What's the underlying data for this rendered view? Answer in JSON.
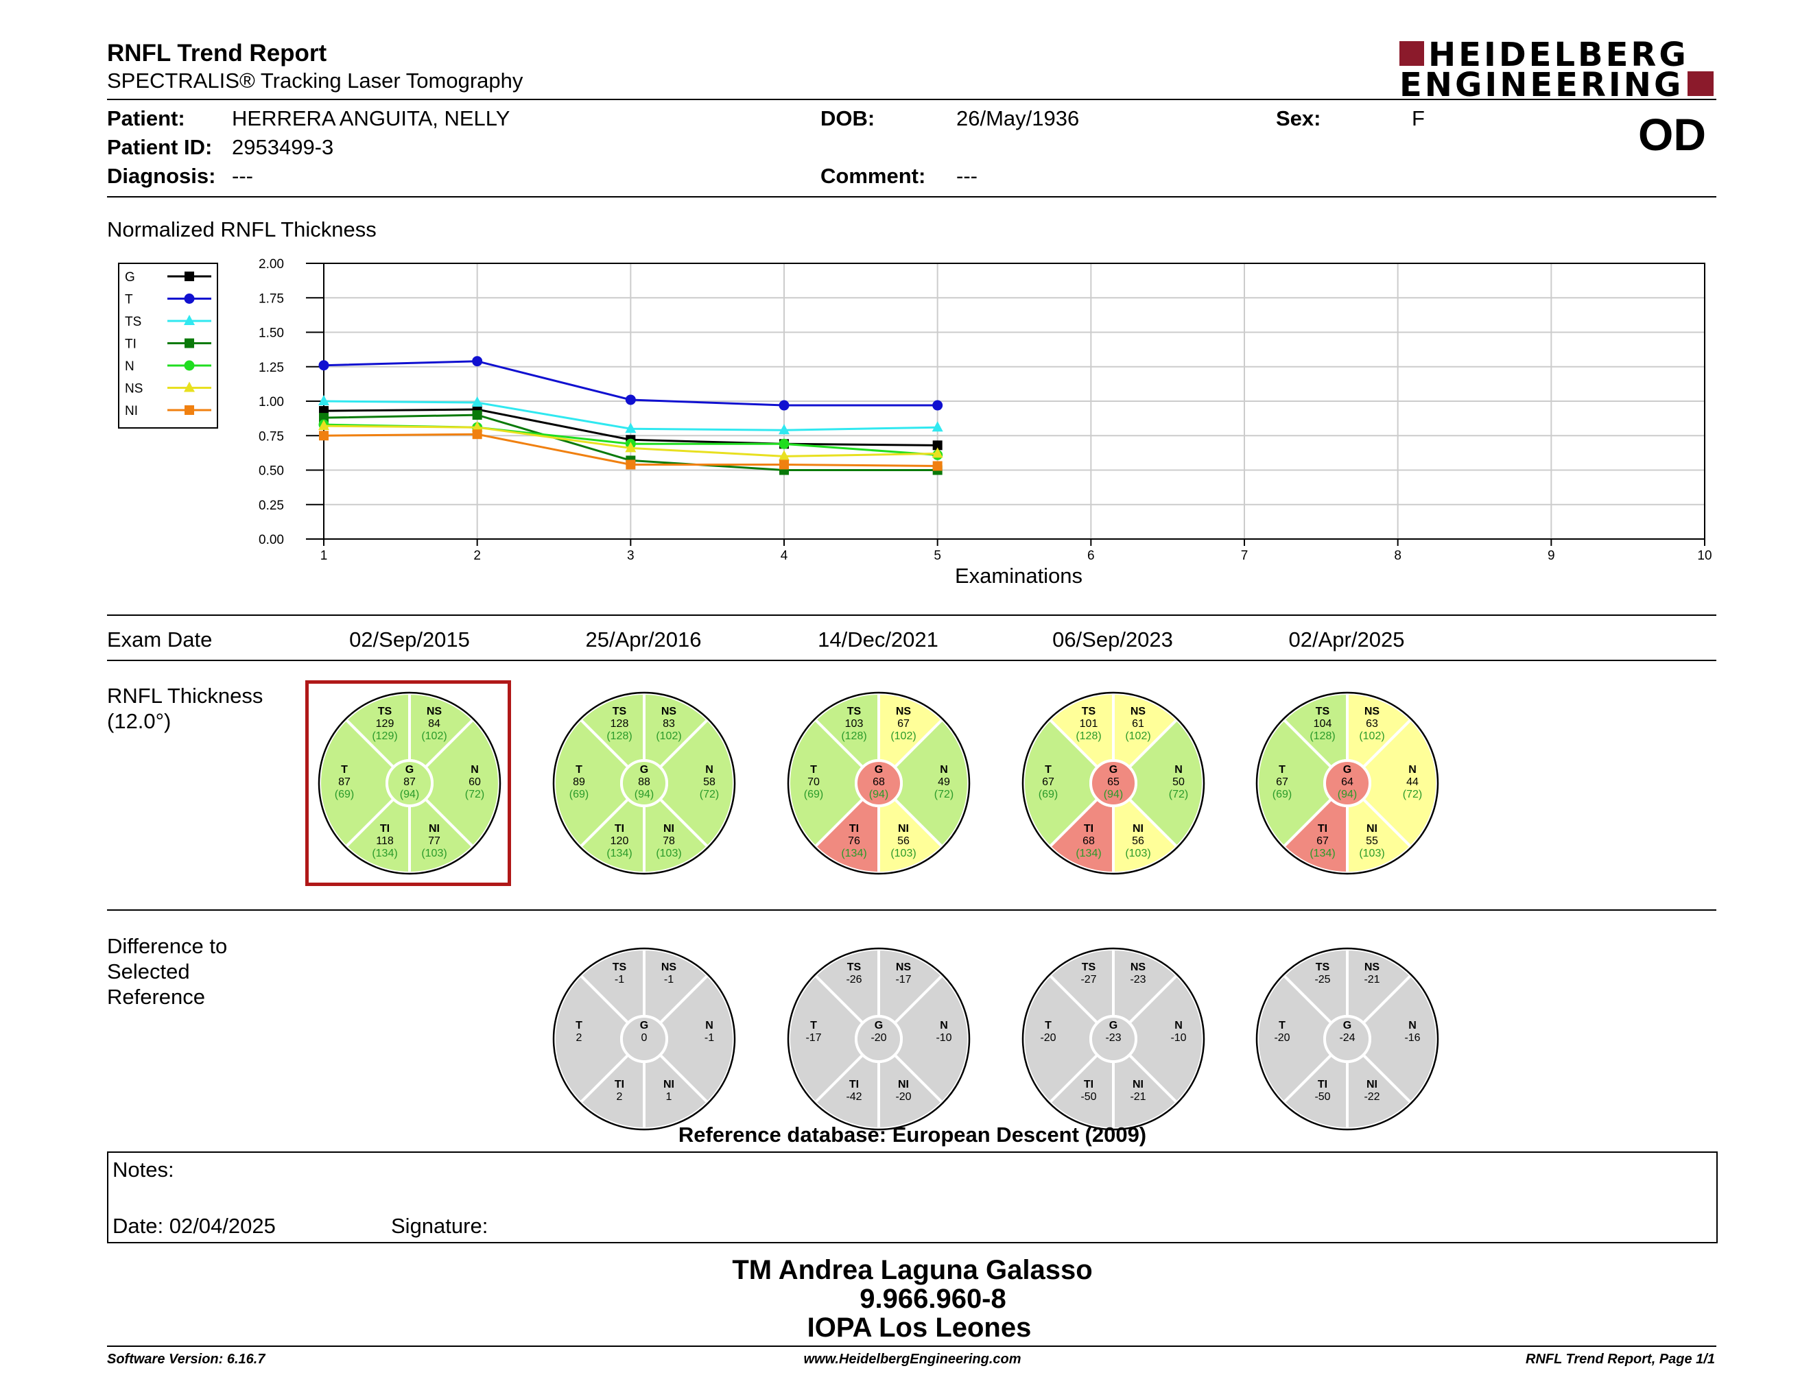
{
  "header": {
    "title": "RNFL Trend Report",
    "subtitle": "SPECTRALIS® Tracking Laser Tomography",
    "logo_line1": "HEIDELBERG",
    "logo_line2": "ENGINEERING",
    "eye": "OD"
  },
  "patient": {
    "patient_label": "Patient:",
    "patient_value": "HERRERA ANGUITA, NELLY",
    "dob_label": "DOB:",
    "dob_value": "26/May/1936",
    "sex_label": "Sex:",
    "sex_value": "F",
    "id_label": "Patient ID:",
    "id_value": "2953499-3",
    "diagnosis_label": "Diagnosis:",
    "diagnosis_value": "---",
    "comment_label": "Comment:",
    "comment_value": "---"
  },
  "chart_data": {
    "type": "line",
    "title": "Normalized RNFL Thickness",
    "xlabel": "Examinations",
    "ylabel": "",
    "xlim": [
      1,
      10
    ],
    "ylim": [
      0,
      2
    ],
    "x_ticks": [
      "1",
      "2",
      "3",
      "4",
      "5",
      "6",
      "7",
      "8",
      "9",
      "10"
    ],
    "y_ticks": [
      "0.00",
      "0.25",
      "0.50",
      "0.75",
      "1.00",
      "1.25",
      "1.50",
      "1.75",
      "2.00"
    ],
    "grid": true,
    "legend_position": "left",
    "x": [
      1,
      2,
      3,
      4,
      5
    ],
    "series": [
      {
        "name": "G",
        "color": "#000000",
        "marker": "square",
        "values": [
          0.93,
          0.94,
          0.72,
          0.69,
          0.68
        ]
      },
      {
        "name": "T",
        "color": "#1010d0",
        "marker": "circle",
        "values": [
          1.26,
          1.29,
          1.01,
          0.97,
          0.97
        ]
      },
      {
        "name": "TS",
        "color": "#30e8f0",
        "marker": "triangle",
        "values": [
          1.0,
          0.99,
          0.8,
          0.79,
          0.81
        ]
      },
      {
        "name": "TI",
        "color": "#0a7a0a",
        "marker": "square",
        "values": [
          0.88,
          0.9,
          0.57,
          0.5,
          0.5
        ]
      },
      {
        "name": "N",
        "color": "#20dd20",
        "marker": "circle",
        "values": [
          0.83,
          0.81,
          0.69,
          0.69,
          0.61
        ]
      },
      {
        "name": "NS",
        "color": "#e8e020",
        "marker": "triangle",
        "values": [
          0.82,
          0.81,
          0.66,
          0.6,
          0.62
        ]
      },
      {
        "name": "NI",
        "color": "#f08010",
        "marker": "square",
        "values": [
          0.75,
          0.76,
          0.54,
          0.54,
          0.53
        ]
      }
    ]
  },
  "exam_dates": {
    "label": "Exam Date",
    "dates": [
      "02/Sep/2015",
      "25/Apr/2016",
      "14/Dec/2021",
      "06/Sep/2023",
      "02/Apr/2025"
    ]
  },
  "thickness": {
    "label_line1": "RNFL Thickness",
    "label_line2": "(12.0°)",
    "reference_index": 0,
    "charts": [
      {
        "TS": "129",
        "NS": "84",
        "T": "87",
        "G": "87",
        "N": "60",
        "TI": "118",
        "NI": "77",
        "ref": {
          "TS": "(129)",
          "NS": "(102)",
          "T": "(69)",
          "G": "(94)",
          "N": "(72)",
          "TI": "(134)",
          "NI": "(103)"
        },
        "status": {
          "TS": "green",
          "NS": "green",
          "T": "green",
          "G": "green",
          "N": "green",
          "TI": "green",
          "NI": "green"
        }
      },
      {
        "TS": "128",
        "NS": "83",
        "T": "89",
        "G": "88",
        "N": "58",
        "TI": "120",
        "NI": "78",
        "ref": {
          "TS": "(128)",
          "NS": "(102)",
          "T": "(69)",
          "G": "(94)",
          "N": "(72)",
          "TI": "(134)",
          "NI": "(103)"
        },
        "status": {
          "TS": "green",
          "NS": "green",
          "T": "green",
          "G": "green",
          "N": "green",
          "TI": "green",
          "NI": "green"
        }
      },
      {
        "TS": "103",
        "NS": "67",
        "T": "70",
        "G": "68",
        "N": "49",
        "TI": "76",
        "NI": "56",
        "ref": {
          "TS": "(128)",
          "NS": "(102)",
          "T": "(69)",
          "G": "(94)",
          "N": "(72)",
          "TI": "(134)",
          "NI": "(103)"
        },
        "status": {
          "TS": "green",
          "NS": "yellow",
          "T": "green",
          "G": "red",
          "N": "green",
          "TI": "red",
          "NI": "yellow"
        }
      },
      {
        "TS": "101",
        "NS": "61",
        "T": "67",
        "G": "65",
        "N": "50",
        "TI": "68",
        "NI": "56",
        "ref": {
          "TS": "(128)",
          "NS": "(102)",
          "T": "(69)",
          "G": "(94)",
          "N": "(72)",
          "TI": "(134)",
          "NI": "(103)"
        },
        "status": {
          "TS": "yellow",
          "NS": "yellow",
          "T": "green",
          "G": "red",
          "N": "green",
          "TI": "red",
          "NI": "yellow"
        }
      },
      {
        "TS": "104",
        "NS": "63",
        "T": "67",
        "G": "64",
        "N": "44",
        "TI": "67",
        "NI": "55",
        "ref": {
          "TS": "(128)",
          "NS": "(102)",
          "T": "(69)",
          "G": "(94)",
          "N": "(72)",
          "TI": "(134)",
          "NI": "(103)"
        },
        "status": {
          "TS": "green",
          "NS": "yellow",
          "T": "green",
          "G": "red",
          "N": "yellow",
          "TI": "red",
          "NI": "yellow"
        }
      }
    ]
  },
  "difference": {
    "label_line1": "Difference to",
    "label_line2": "Selected",
    "label_line3": "Reference",
    "charts": [
      {
        "TS": "-1",
        "NS": "-1",
        "T": "2",
        "G": "0",
        "N": "-1",
        "TI": "2",
        "NI": "1"
      },
      {
        "TS": "-26",
        "NS": "-17",
        "T": "-17",
        "G": "-20",
        "N": "-10",
        "TI": "-42",
        "NI": "-20"
      },
      {
        "TS": "-27",
        "NS": "-23",
        "T": "-20",
        "G": "-23",
        "N": "-10",
        "TI": "-50",
        "NI": "-21"
      },
      {
        "TS": "-25",
        "NS": "-21",
        "T": "-20",
        "G": "-24",
        "N": "-16",
        "TI": "-50",
        "NI": "-22"
      }
    ],
    "reference_db": "Reference database: European Descent (2009)"
  },
  "sector_names": {
    "TS": "TS",
    "NS": "NS",
    "T": "T",
    "G": "G",
    "N": "N",
    "TI": "TI",
    "NI": "NI"
  },
  "colors": {
    "green": "#c4f08a",
    "yellow": "#ffff99",
    "red": "#f08a80",
    "gray": "#d4d4d4",
    "ref_text": "#2a9a2a",
    "selected_border": "#b01818",
    "logo_red": "#8b1a2b"
  },
  "notes": {
    "label": "Notes:",
    "date": "Date: 02/04/2025",
    "signature": "Signature:"
  },
  "signature_block": {
    "line1": "TM Andrea Laguna Galasso",
    "line2": "9.966.960-8",
    "line3": "IOPA Los Leones"
  },
  "footer": {
    "version": "Software Version: 6.16.7",
    "url": "www.HeidelbergEngineering.com",
    "page": "RNFL Trend Report, Page 1/1"
  }
}
